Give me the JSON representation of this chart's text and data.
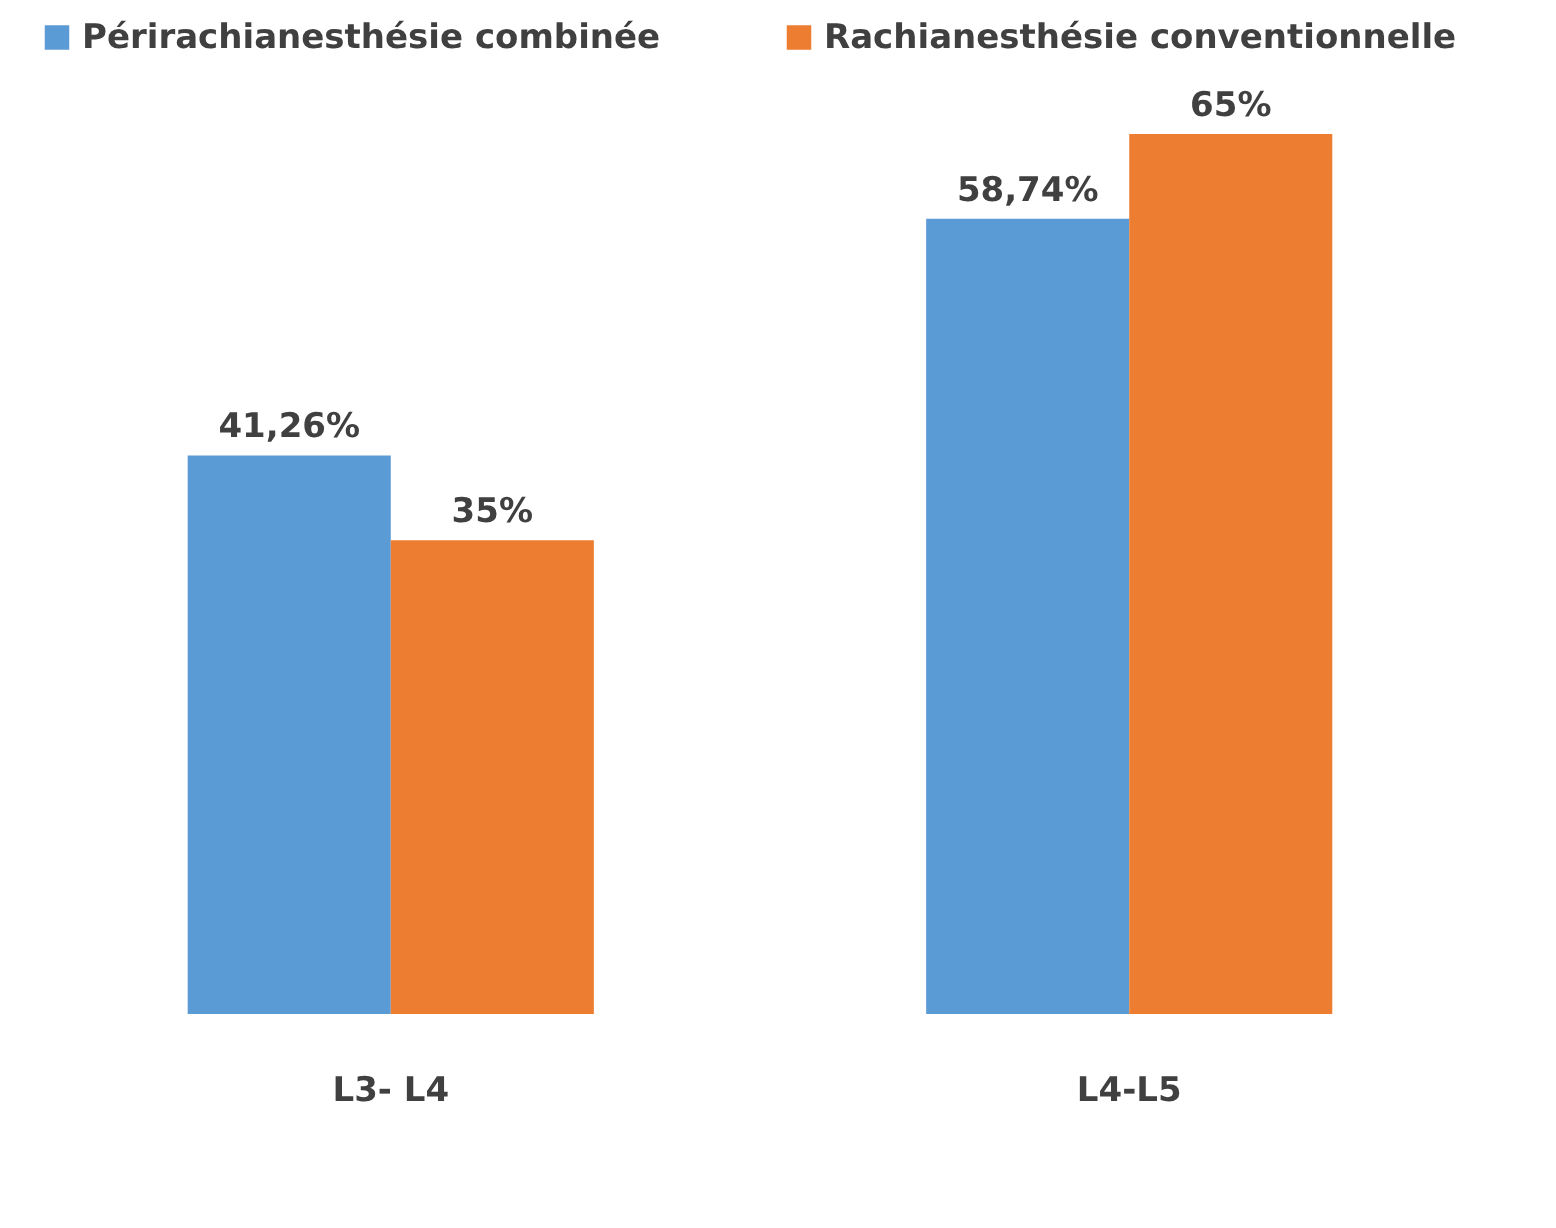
{
  "chart_data": {
    "type": "bar",
    "categories": [
      "L3- L4",
      "L4-L5"
    ],
    "series": [
      {
        "name": "Périrachianesthésie combinée",
        "color": "#5b9bd5",
        "values": [
          41.26,
          58.74
        ],
        "value_labels": [
          "41,26%",
          "58,74%"
        ]
      },
      {
        "name": "Rachianesthésie conventionnelle",
        "color": "#ed7d31",
        "values": [
          35,
          65
        ],
        "value_labels": [
          "35%",
          "65%"
        ]
      }
    ],
    "legend": "top left"
  }
}
